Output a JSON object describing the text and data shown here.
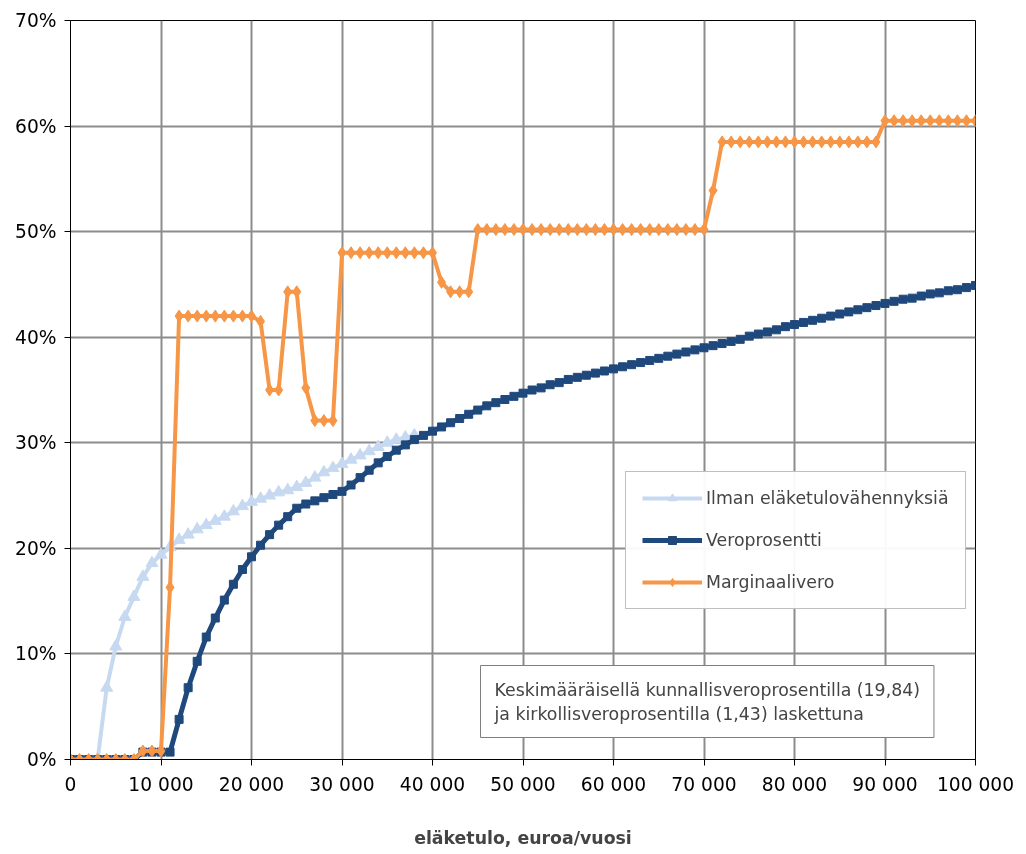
{
  "chart_data": {
    "type": "line",
    "xlabel": "eläketulo, euroa/vuosi",
    "x": [
      0,
      1000,
      2000,
      3000,
      4000,
      5000,
      6000,
      7000,
      8000,
      9000,
      10000,
      11000,
      12000,
      13000,
      14000,
      15000,
      16000,
      17000,
      18000,
      19000,
      20000,
      21000,
      22000,
      23000,
      24000,
      25000,
      26000,
      27000,
      28000,
      29000,
      30000,
      31000,
      32000,
      33000,
      34000,
      35000,
      36000,
      37000,
      38000,
      39000,
      40000,
      41000,
      42000,
      43000,
      44000,
      45000,
      46000,
      47000,
      48000,
      49000,
      50000,
      51000,
      52000,
      53000,
      54000,
      55000,
      56000,
      57000,
      58000,
      59000,
      60000,
      61000,
      62000,
      63000,
      64000,
      65000,
      66000,
      67000,
      68000,
      69000,
      70000,
      71000,
      72000,
      73000,
      74000,
      75000,
      76000,
      77000,
      78000,
      79000,
      80000,
      81000,
      82000,
      83000,
      84000,
      85000,
      86000,
      87000,
      88000,
      89000,
      90000,
      91000,
      92000,
      93000,
      94000,
      95000,
      96000,
      97000,
      98000,
      99000,
      100000
    ],
    "series": [
      {
        "name": "Ilman eläketulovähennyksiä",
        "color": "#c6d9f1",
        "marker": "triangle",
        "x": [
          3000,
          4000,
          5000,
          6000,
          7000,
          8000,
          9000,
          10000,
          11000,
          12000,
          13000,
          14000,
          15000,
          16000,
          17000,
          18000,
          19000,
          20000,
          21000,
          22000,
          23000,
          24000,
          25000,
          26000,
          27000,
          28000,
          29000,
          30000,
          31000,
          32000,
          33000,
          34000,
          35000,
          36000,
          37000,
          38000
        ],
        "values": [
          0,
          6.8,
          10.7,
          13.5,
          15.4,
          17.3,
          18.6,
          19.4,
          20.1,
          20.8,
          21.3,
          21.8,
          22.2,
          22.6,
          23.0,
          23.5,
          24.0,
          24.4,
          24.7,
          25.0,
          25.3,
          25.5,
          25.8,
          26.2,
          26.7,
          27.2,
          27.6,
          28.0,
          28.4,
          28.8,
          29.2,
          29.6,
          30.0,
          30.3,
          30.5,
          30.7
        ]
      },
      {
        "name": "Veroprosentti",
        "color": "#1f497d",
        "marker": "square",
        "values": [
          0,
          0,
          0,
          0,
          0,
          0,
          0,
          0,
          0.7,
          0.7,
          0.7,
          0.7,
          3.8,
          6.8,
          9.3,
          11.6,
          13.4,
          15.1,
          16.6,
          18.0,
          19.2,
          20.3,
          21.3,
          22.2,
          23.0,
          23.8,
          24.2,
          24.5,
          24.8,
          25.1,
          25.4,
          26.0,
          26.7,
          27.4,
          28.1,
          28.7,
          29.3,
          29.8,
          30.3,
          30.7,
          31.1,
          31.5,
          31.9,
          32.3,
          32.7,
          33.1,
          33.5,
          33.8,
          34.1,
          34.4,
          34.7,
          35.0,
          35.2,
          35.5,
          35.7,
          36.0,
          36.2,
          36.4,
          36.6,
          36.8,
          37.0,
          37.2,
          37.4,
          37.6,
          37.8,
          38.0,
          38.2,
          38.4,
          38.6,
          38.8,
          39.0,
          39.2,
          39.4,
          39.6,
          39.8,
          40.1,
          40.3,
          40.5,
          40.7,
          41.0,
          41.2,
          41.4,
          41.6,
          41.8,
          42.0,
          42.2,
          42.4,
          42.6,
          42.8,
          43.0,
          43.2,
          43.4,
          43.6,
          43.7,
          43.9,
          44.1,
          44.2,
          44.4,
          44.5,
          44.7,
          44.9
        ]
      },
      {
        "name": "Marginaalivero",
        "color": "#f79646",
        "marker": "diamond",
        "values": [
          0,
          0,
          0,
          0,
          0,
          0,
          0,
          0,
          0.8,
          0.8,
          0.8,
          16.3,
          42.0,
          42.0,
          42.0,
          42.0,
          42.0,
          42.0,
          42.0,
          42.0,
          42.0,
          41.5,
          35.0,
          35.0,
          44.3,
          44.3,
          35.2,
          32.1,
          32.1,
          32.1,
          48.0,
          48.0,
          48.0,
          48.0,
          48.0,
          48.0,
          48.0,
          48.0,
          48.0,
          48.0,
          48.0,
          45.2,
          44.3,
          44.3,
          44.3,
          50.2,
          50.2,
          50.2,
          50.2,
          50.2,
          50.2,
          50.2,
          50.2,
          50.2,
          50.2,
          50.2,
          50.2,
          50.2,
          50.2,
          50.2,
          50.2,
          50.2,
          50.2,
          50.2,
          50.2,
          50.2,
          50.2,
          50.2,
          50.2,
          50.2,
          50.2,
          53.9,
          58.5,
          58.5,
          58.5,
          58.5,
          58.5,
          58.5,
          58.5,
          58.5,
          58.5,
          58.5,
          58.5,
          58.5,
          58.5,
          58.5,
          58.5,
          58.5,
          58.5,
          58.5,
          60.5,
          60.5,
          60.5,
          60.5,
          60.5,
          60.5,
          60.5,
          60.5,
          60.5,
          60.5,
          60.5
        ]
      }
    ],
    "xlim": [
      0,
      100000
    ],
    "xticks": [
      0,
      {
        "value": 10000,
        "label": "10 000"
      },
      {
        "value": 20000,
        "label": "20 000"
      },
      {
        "value": 30000,
        "label": "30 000"
      },
      {
        "value": 40000,
        "label": "40 000"
      },
      {
        "value": 50000,
        "label": "50 000"
      },
      {
        "value": 60000,
        "label": "60 000"
      },
      {
        "value": 70000,
        "label": "70 000"
      },
      {
        "value": 80000,
        "label": "80 000"
      },
      {
        "value": 90000,
        "label": "90 000"
      },
      {
        "value": 100000,
        "label": "100 000"
      }
    ],
    "ylim": [
      0,
      70
    ],
    "yticks": [
      {
        "value": 0,
        "label": "0%"
      },
      {
        "value": 10,
        "label": "10%"
      },
      {
        "value": 20,
        "label": "20%"
      },
      {
        "value": 30,
        "label": "30%"
      },
      {
        "value": 40,
        "label": "40%"
      },
      {
        "value": 50,
        "label": "50%"
      },
      {
        "value": 60,
        "label": "60%"
      },
      {
        "value": 70,
        "label": "70%"
      }
    ],
    "grid": true,
    "legend": "right",
    "annotations": [
      "Keskimääräisellä kunnallisveroprosentilla (19,84)\nja kirkollisveroprosentilla (1,43) laskettuna"
    ]
  }
}
